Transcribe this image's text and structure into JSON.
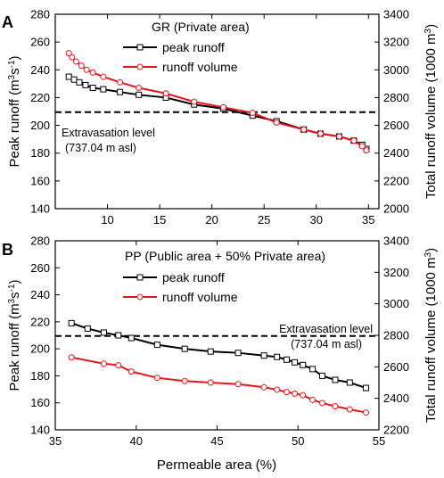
{
  "figure": {
    "xlabel": "Permeable area (%)"
  },
  "chart_data": [
    {
      "type": "line",
      "panel_letter": "A",
      "legend_title": "GR (Private area)",
      "ylabel_left": "Peak runoff (m",
      "ylabel_left_sup": "3",
      "ylabel_left_tail": "s",
      "ylabel_left_sup2": "-1",
      "ylabel_left_close": ")",
      "ylabel_right": "Total runoff volume (1000 m",
      "ylabel_right_sup": "3",
      "ylabel_right_close": ")",
      "xlim": [
        5,
        36
      ],
      "ylim_left": [
        140,
        280
      ],
      "ylim_right": [
        2000,
        3400
      ],
      "xticks": [
        5,
        10,
        15,
        20,
        25,
        30,
        35
      ],
      "xtick_labels": [
        "",
        "10",
        "15",
        "20",
        "25",
        "30",
        "35"
      ],
      "yticks_left": [
        140,
        160,
        180,
        200,
        220,
        240,
        260,
        280
      ],
      "yticks_right": [
        2000,
        2200,
        2400,
        2600,
        2800,
        3000,
        3200,
        3400
      ],
      "reference_line": {
        "value": 209.5,
        "label_line1": "Extravasation level",
        "label_line2": "(737.04 m asl)",
        "style": "dashed"
      },
      "legend_position": "top-right",
      "grid": false,
      "series": [
        {
          "name": "peak runoff",
          "axis": "left",
          "color": "#000000",
          "marker": "square",
          "x": [
            6.3,
            6.8,
            7.3,
            7.9,
            8.6,
            9.6,
            11.2,
            13.0,
            15.6,
            18.3,
            21.1,
            23.9,
            26.2,
            28.8,
            30.4,
            32.2,
            33.6,
            34.4,
            34.8
          ],
          "y": [
            235,
            233,
            231,
            229,
            227,
            226,
            224,
            222,
            220,
            215,
            212,
            207,
            203,
            197,
            194,
            192,
            189,
            186,
            183
          ]
        },
        {
          "name": "runoff volume",
          "axis": "right",
          "color": "#e8141c",
          "marker": "circle",
          "x": [
            6.3,
            6.6,
            7.0,
            7.5,
            8.0,
            8.6,
            9.6,
            11.2,
            13.0,
            15.6,
            18.3,
            21.1,
            23.9,
            26.2,
            28.8,
            30.4,
            32.2,
            33.6,
            34.4,
            34.8
          ],
          "y": [
            3120,
            3090,
            3060,
            3030,
            3000,
            2980,
            2950,
            2910,
            2870,
            2830,
            2770,
            2730,
            2690,
            2620,
            2570,
            2540,
            2520,
            2490,
            2450,
            2420
          ]
        }
      ]
    },
    {
      "type": "line",
      "panel_letter": "B",
      "legend_title": "PP (Public area + 50% Private area)",
      "ylabel_left": "Peak runoff (m",
      "ylabel_left_sup": "3",
      "ylabel_left_tail": "s",
      "ylabel_left_sup2": "-1",
      "ylabel_left_close": ")",
      "ylabel_right": "Total runoff volume (1000 m",
      "ylabel_right_sup": "3",
      "ylabel_right_close": ")",
      "xlim": [
        35,
        55
      ],
      "ylim_left": [
        140,
        280
      ],
      "ylim_right": [
        2200,
        3400
      ],
      "xticks": [
        35,
        40,
        45,
        50,
        55
      ],
      "xtick_labels": [
        "35",
        "40",
        "45",
        "50",
        "55"
      ],
      "yticks_left": [
        140,
        160,
        180,
        200,
        220,
        240,
        260,
        280
      ],
      "yticks_right": [
        2200,
        2400,
        2600,
        2800,
        3000,
        3200,
        3400
      ],
      "reference_line": {
        "value": 209.5,
        "label_line1": "Extravasation level",
        "label_line2": "(737.04 m asl)",
        "style": "dashed"
      },
      "legend_position": "top-right",
      "grid": false,
      "series": [
        {
          "name": "peak runoff",
          "axis": "left",
          "color": "#000000",
          "marker": "square",
          "x": [
            36.0,
            37.0,
            38.0,
            38.9,
            39.7,
            41.3,
            43.0,
            44.6,
            46.3,
            47.9,
            48.7,
            49.3,
            49.8,
            50.3,
            50.9,
            51.5,
            52.3,
            53.2,
            54.2
          ],
          "y": [
            219,
            215,
            212,
            210,
            208,
            203,
            200,
            198,
            197,
            195,
            194,
            192,
            190,
            188,
            185,
            180,
            177,
            175,
            171
          ]
        },
        {
          "name": "runoff volume",
          "axis": "right",
          "color": "#e8141c",
          "marker": "circle",
          "x": [
            36.0,
            38.0,
            38.9,
            39.7,
            41.3,
            43.0,
            44.6,
            46.3,
            47.9,
            48.7,
            49.3,
            49.8,
            50.3,
            50.9,
            51.5,
            52.3,
            53.2,
            54.2
          ],
          "y": [
            2660,
            2620,
            2610,
            2570,
            2530,
            2510,
            2500,
            2490,
            2470,
            2455,
            2440,
            2430,
            2420,
            2390,
            2370,
            2350,
            2330,
            2310
          ]
        }
      ]
    }
  ]
}
